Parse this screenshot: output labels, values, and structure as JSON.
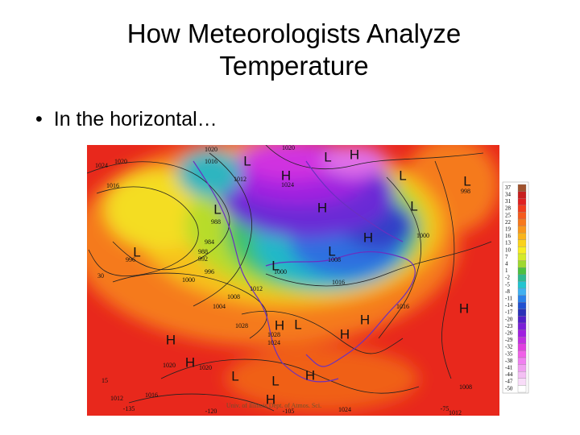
{
  "title": [
    "How Meteorologists Analyze",
    "Temperature"
  ],
  "bullets": [
    "In the horizontal…"
  ],
  "map": {
    "labels": [
      "1020",
      "1020",
      "1024",
      "1020",
      "1016",
      "1016",
      "1012",
      "1024",
      "988",
      "984",
      "988",
      "992",
      "996",
      "1000",
      "1012",
      "1008",
      "1004",
      "1028",
      "1028",
      "1024",
      "1020",
      "1020",
      "1016",
      "1012",
      "1016",
      "1016",
      "1000",
      "1008",
      "996",
      "30",
      "15",
      "-135",
      "-120",
      "-105",
      "-75",
      "1024",
      "1012",
      "1008",
      "998",
      "1000",
      "H",
      "H",
      "H",
      "H",
      "H",
      "H",
      "H",
      "H",
      "H",
      "H",
      "H",
      "H",
      "L",
      "L",
      "L",
      "L",
      "L",
      "L",
      "L",
      "L",
      "L",
      "L",
      "L",
      "L"
    ],
    "credit": "Univ. of Illinois Dept. of Atmos. Sci.",
    "legend": [
      37,
      34,
      31,
      28,
      25,
      22,
      19,
      16,
      13,
      10,
      7,
      4,
      1,
      -2,
      -5,
      -8,
      -11,
      -14,
      -17,
      -20,
      -23,
      -26,
      -29,
      -32,
      -35,
      -38,
      -41,
      -44,
      -47,
      -50
    ]
  }
}
